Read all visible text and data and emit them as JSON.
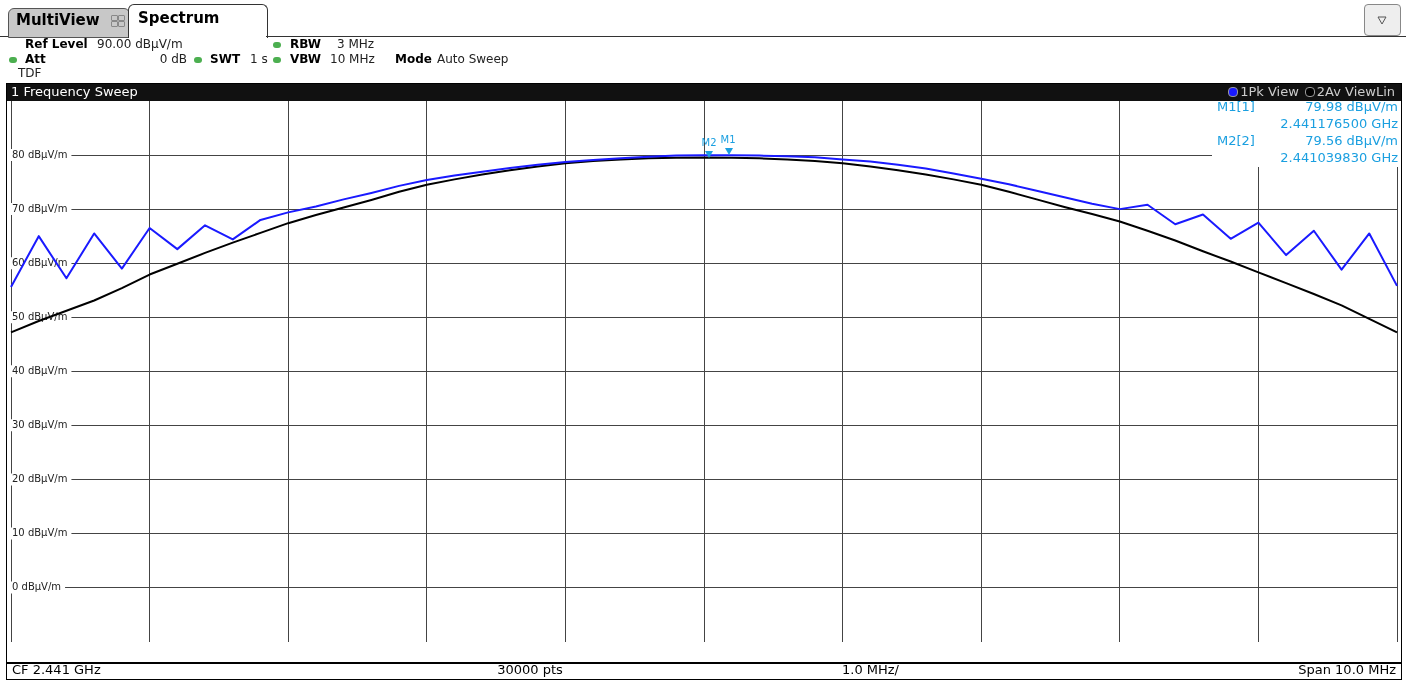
{
  "chart_data": {
    "type": "line",
    "title": "1 Frequency Sweep",
    "categories": [
      null,
      null,
      null,
      null,
      null,
      null,
      null,
      null,
      null,
      null,
      null,
      null,
      null,
      null,
      null,
      null,
      null,
      null,
      null,
      null,
      null,
      null,
      null,
      null,
      null,
      null,
      null,
      null,
      null,
      null,
      null,
      null,
      null,
      null,
      null,
      null,
      null,
      null,
      null,
      null,
      null,
      null,
      null,
      null,
      null,
      null,
      null,
      null,
      null,
      null,
      null
    ],
    "series": [
      {
        "name": "1Pk View",
        "color": "#1a1aff",
        "values": [
          55.6,
          65,
          57.2,
          65.5,
          59,
          66.5,
          62.6,
          67,
          64.4,
          68,
          69.4,
          70.5,
          71.8,
          73,
          74.3,
          75.4,
          76.2,
          76.9,
          77.6,
          78.2,
          78.7,
          79.1,
          79.4,
          79.7,
          79.9,
          79.95,
          79.98,
          79.9,
          79.8,
          79.6,
          79.2,
          78.8,
          78.2,
          77.5,
          76.6,
          75.6,
          74.6,
          73.4,
          72.2,
          71,
          70,
          70.8,
          67.2,
          69,
          64.5,
          67.5,
          61.5,
          66,
          58.8,
          65.5,
          55.8
        ]
      },
      {
        "name": "2Av ViewLin",
        "color": "#000000",
        "values": [
          47.2,
          49.3,
          51.2,
          53.1,
          55.4,
          57.9,
          59.9,
          61.9,
          63.8,
          65.6,
          67.4,
          68.9,
          70.3,
          71.7,
          73.2,
          74.5,
          75.5,
          76.4,
          77.2,
          77.9,
          78.5,
          78.9,
          79.2,
          79.4,
          79.5,
          79.56,
          79.5,
          79.4,
          79.2,
          78.9,
          78.5,
          77.9,
          77.2,
          76.4,
          75.5,
          74.5,
          73.2,
          71.8,
          70.4,
          69.1,
          67.7,
          66,
          64.2,
          62.2,
          60.3,
          58.3,
          56.3,
          54.3,
          52.2,
          49.7,
          47.2
        ]
      }
    ],
    "ylim": [
      -10,
      90
    ],
    "yticks": [
      {
        "value": 0,
        "label": "0 dBµV/m"
      },
      {
        "value": 10,
        "label": "10 dBµV/m"
      },
      {
        "value": 20,
        "label": "20 dBµV/m"
      },
      {
        "value": 30,
        "label": "30 dBµV/m"
      },
      {
        "value": 40,
        "label": "40 dBµV/m"
      },
      {
        "value": 50,
        "label": "50 dBµV/m"
      },
      {
        "value": 60,
        "label": "60 dBµV/m"
      },
      {
        "value": 70,
        "label": "70 dBµV/m"
      },
      {
        "value": 80,
        "label": "80 dBµV/m"
      }
    ],
    "grid": true,
    "legend": "top right",
    "annotations": [
      "MultiView",
      "Spectrum",
      "Ref Level",
      "90.00 dBµV/m",
      "Att",
      "0 dB",
      "SWT",
      "1 s",
      "RBW",
      "3 MHz",
      "VBW",
      "10 MHz",
      "Mode",
      "Auto Sweep",
      "TDF",
      "M1[1]",
      "79.98 dBµV/m",
      "2.441176500 GHz",
      "M2[2]",
      "79.56 dBµV/m",
      "2.441039830 GHz",
      "CF 2.441 GHz",
      "30000 pts",
      "1.0 MHz/",
      "Span 10.0 MHz",
      "M1",
      "M2"
    ]
  }
}
